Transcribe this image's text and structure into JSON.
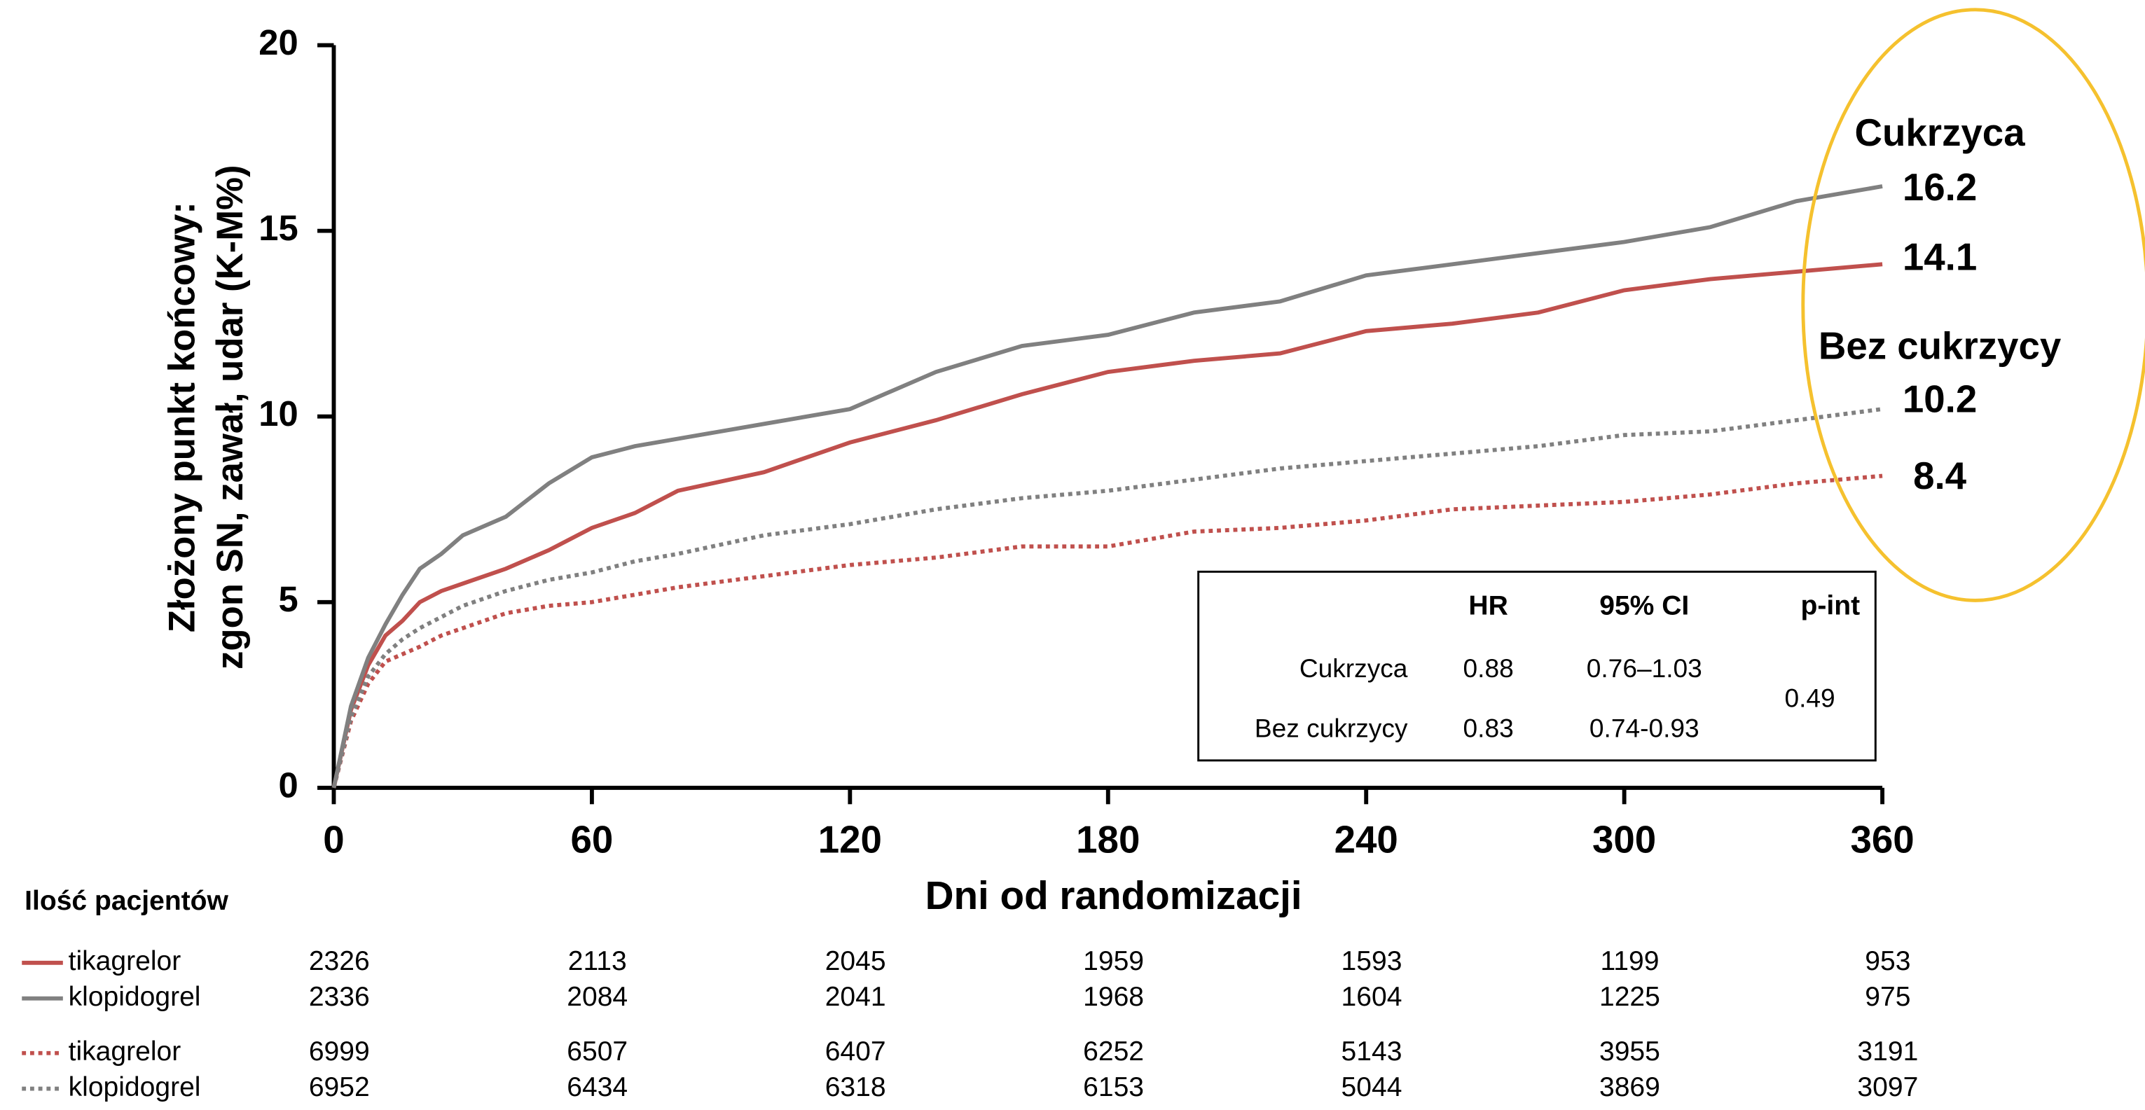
{
  "chart_data": {
    "type": "line",
    "y_label_lines": [
      "Złożony punkt końcowy:",
      "zgon SN, zawał, udar (K-M%)"
    ],
    "x_label": "Dni od randomizacji",
    "x": [
      0,
      4,
      8,
      12,
      16,
      20,
      25,
      30,
      40,
      50,
      60,
      70,
      80,
      100,
      120,
      140,
      160,
      180,
      200,
      220,
      240,
      260,
      280,
      300,
      320,
      340,
      360
    ],
    "series": [
      {
        "name": "tikagrelor",
        "color": "#c0504d",
        "dash": false,
        "values": [
          0,
          2.1,
          3.3,
          4.1,
          4.5,
          5.0,
          5.3,
          5.5,
          5.9,
          6.4,
          7.0,
          7.4,
          8.0,
          8.5,
          9.3,
          9.9,
          10.6,
          11.2,
          11.5,
          11.7,
          12.3,
          12.5,
          12.8,
          13.4,
          13.7,
          13.9,
          14.1
        ]
      },
      {
        "name": "klopidogrel",
        "color": "#808080",
        "dash": false,
        "values": [
          0,
          2.2,
          3.5,
          4.4,
          5.2,
          5.9,
          6.3,
          6.8,
          7.3,
          8.2,
          8.9,
          9.2,
          9.4,
          9.8,
          10.2,
          11.2,
          11.9,
          12.2,
          12.8,
          13.1,
          13.8,
          14.1,
          14.4,
          14.7,
          15.1,
          15.8,
          16.2
        ]
      },
      {
        "name": "tikagrelor",
        "color": "#c0504d",
        "dash": true,
        "values": [
          0,
          1.8,
          2.8,
          3.4,
          3.6,
          3.8,
          4.1,
          4.3,
          4.7,
          4.9,
          5.0,
          5.2,
          5.4,
          5.7,
          6.0,
          6.2,
          6.5,
          6.5,
          6.9,
          7.0,
          7.2,
          7.5,
          7.6,
          7.7,
          7.9,
          8.2,
          8.4
        ]
      },
      {
        "name": "klopidogrel",
        "color": "#808080",
        "dash": true,
        "values": [
          0,
          1.9,
          3.0,
          3.6,
          4.0,
          4.3,
          4.6,
          4.9,
          5.3,
          5.6,
          5.8,
          6.1,
          6.3,
          6.8,
          7.1,
          7.5,
          7.8,
          8.0,
          8.3,
          8.6,
          8.8,
          9.0,
          9.2,
          9.5,
          9.6,
          9.9,
          10.2
        ]
      }
    ],
    "group_labels": [
      "Cukrzyca",
      "Bez cukrzycy"
    ],
    "xlim": [
      0,
      360
    ],
    "xticks": [
      0,
      60,
      120,
      180,
      240,
      300,
      360
    ],
    "ylim": [
      0,
      20
    ],
    "yticks": [
      0,
      5,
      10,
      15,
      20
    ],
    "highlight_color": "#f5c12e",
    "hr_table": {
      "header": [
        "HR",
        "95% CI",
        "p-int"
      ],
      "rows": [
        [
          "Cukrzyca",
          0.88,
          "0.76–1.03"
        ],
        [
          "Bez cukrzycy",
          0.83,
          "0.74-0.93"
        ]
      ],
      "p_int": 0.49
    },
    "at_risk": {
      "title": "Ilość pacjentów",
      "rows": [
        [
          2326,
          2113,
          2045,
          1959,
          1593,
          1199,
          953
        ],
        [
          2336,
          2084,
          2041,
          1968,
          1604,
          1225,
          975
        ],
        [
          6999,
          6507,
          6407,
          6252,
          5143,
          3955,
          3191
        ],
        [
          6952,
          6434,
          6318,
          6153,
          5044,
          3869,
          3097
        ]
      ]
    }
  }
}
